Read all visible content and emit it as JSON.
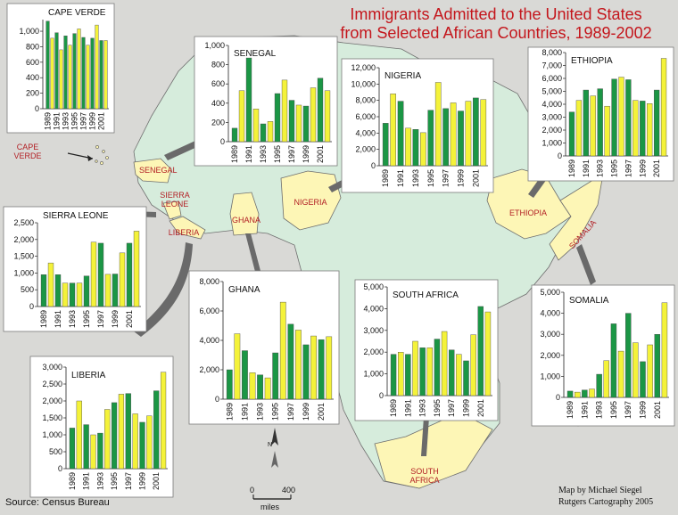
{
  "title": {
    "line1": "Immigrants Admitted to the United States",
    "line2": "from Selected African Countries, 1989-2002"
  },
  "source": "Source: Census Bureau",
  "credit": {
    "line1": "Map by Michael Siegel",
    "line2": "Rutgers Cartography 2005"
  },
  "scale": {
    "zero": "0",
    "four_hundred": "400",
    "unit": "miles",
    "north": "N"
  },
  "map_labels": {
    "cape_verde": "CAPE VERDE",
    "senegal": "SENEGAL",
    "sierra_leone": "SIERRA LEONE",
    "liberia": "LIBERIA",
    "ghana": "GHANA",
    "nigeria": "NIGERIA",
    "ethiopia": "ETHIOPIA",
    "somalia": "SOMALIA",
    "south_africa": "SOUTH AFRICA"
  },
  "colors": {
    "ocean": "#d9d9d6",
    "land": "#d6ecdc",
    "highlight": "#fdf6b6",
    "even_year_bar": "#1b9645",
    "odd_year_bar": "#f4f23a",
    "label": "#b21f24",
    "title": "#c4161c"
  },
  "chart_data": [
    {
      "id": "cape-verde",
      "type": "bar",
      "title": "CAPE VERDE",
      "categories": [
        "1989",
        "1990",
        "1991",
        "1992",
        "1993",
        "1994",
        "1995",
        "1996",
        "1997",
        "1998",
        "1999",
        "2000",
        "2001",
        "2002"
      ],
      "tick_labels": [
        "1989",
        "1991",
        "1993",
        "1995",
        "1997",
        "1999",
        "2001"
      ],
      "values": [
        1130,
        910,
        980,
        760,
        940,
        820,
        970,
        1030,
        920,
        820,
        910,
        1080,
        880,
        880
      ],
      "yticks": [
        0,
        200,
        400,
        600,
        800,
        1000
      ],
      "ytick_labels": [
        "0",
        "200",
        "400",
        "600",
        "800",
        "1,000"
      ],
      "ylim": [
        0,
        1150
      ]
    },
    {
      "id": "senegal",
      "type": "bar",
      "title": "SENEGAL",
      "categories": [
        "1989",
        "1990",
        "1991",
        "1992",
        "1993",
        "1994",
        "1995",
        "1996",
        "1997",
        "1998",
        "1999",
        "2000",
        "2001",
        "2002"
      ],
      "tick_labels": [
        "1989",
        "1991",
        "1993",
        "1995",
        "1997",
        "1999",
        "2001"
      ],
      "values": [
        140,
        530,
        870,
        340,
        185,
        210,
        500,
        640,
        430,
        380,
        370,
        560,
        660,
        530
      ],
      "yticks": [
        0,
        200,
        400,
        600,
        800,
        1000
      ],
      "ytick_labels": [
        "0",
        "200",
        "400",
        "600",
        "800",
        "1,000"
      ],
      "ylim": [
        0,
        1000
      ]
    },
    {
      "id": "nigeria",
      "type": "bar",
      "title": "NIGERIA",
      "categories": [
        "1989",
        "1990",
        "1991",
        "1992",
        "1993",
        "1994",
        "1995",
        "1996",
        "1997",
        "1998",
        "1999",
        "2000",
        "2001",
        "2002"
      ],
      "tick_labels": [
        "1989",
        "1991",
        "1993",
        "1995",
        "1997",
        "1999",
        "2001"
      ],
      "values": [
        5200,
        8800,
        7900,
        4600,
        4450,
        4050,
        6800,
        10200,
        7000,
        7700,
        6700,
        7900,
        8300,
        8100
      ],
      "yticks": [
        0,
        2000,
        4000,
        6000,
        8000,
        10000,
        12000
      ],
      "ytick_labels": [
        "0",
        "2,000",
        "4,000",
        "6,000",
        "8,000",
        "10,000",
        "12,000"
      ],
      "ylim": [
        0,
        12000
      ]
    },
    {
      "id": "ethiopia",
      "type": "bar",
      "title": "ETHIOPIA",
      "categories": [
        "1989",
        "1990",
        "1991",
        "1992",
        "1993",
        "1994",
        "1995",
        "1996",
        "1997",
        "1998",
        "1999",
        "2000",
        "2001",
        "2002"
      ],
      "tick_labels": [
        "1989",
        "1991",
        "1993",
        "1995",
        "1997",
        "1999",
        "2001"
      ],
      "values": [
        3400,
        4300,
        5100,
        4650,
        5200,
        3850,
        5950,
        6100,
        5900,
        4300,
        4250,
        4050,
        5100,
        7550
      ],
      "yticks": [
        0,
        1000,
        2000,
        3000,
        4000,
        5000,
        6000,
        7000,
        8000
      ],
      "ytick_labels": [
        "0",
        "1,000",
        "2,000",
        "3,000",
        "4,000",
        "5,000",
        "6,000",
        "7,000",
        "8,000"
      ],
      "ylim": [
        0,
        8000
      ]
    },
    {
      "id": "sierra-leone",
      "type": "bar",
      "title": "SIERRA LEONE",
      "categories": [
        "1989",
        "1990",
        "1991",
        "1992",
        "1993",
        "1994",
        "1995",
        "1996",
        "1997",
        "1998",
        "1999",
        "2000",
        "2001",
        "2002"
      ],
      "tick_labels": [
        "1989",
        "1991",
        "1993",
        "1995",
        "1997",
        "1999",
        "2001"
      ],
      "values": [
        950,
        1300,
        950,
        700,
        700,
        700,
        910,
        1920,
        1890,
        960,
        970,
        1600,
        1890,
        2250
      ],
      "yticks": [
        0,
        500,
        1000,
        1500,
        2000,
        2500
      ],
      "ytick_labels": [
        "0",
        "500",
        "1,000",
        "1,500",
        "2,000",
        "2,500"
      ],
      "ylim": [
        0,
        2500
      ]
    },
    {
      "id": "ghana",
      "type": "bar",
      "title": "GHANA",
      "categories": [
        "1989",
        "1990",
        "1991",
        "1992",
        "1993",
        "1994",
        "1995",
        "1996",
        "1997",
        "1998",
        "1999",
        "2000",
        "2001",
        "2002"
      ],
      "tick_labels": [
        "1989",
        "1991",
        "1993",
        "1995",
        "1997",
        "1999",
        "2001"
      ],
      "values": [
        2000,
        4450,
        3300,
        1800,
        1650,
        1450,
        3150,
        6600,
        5100,
        4700,
        3700,
        4300,
        4050,
        4250
      ],
      "yticks": [
        0,
        2000,
        4000,
        6000,
        8000
      ],
      "ytick_labels": [
        "0",
        "2,000",
        "4,000",
        "6,000",
        "8,000"
      ],
      "ylim": [
        0,
        8000
      ]
    },
    {
      "id": "south-africa",
      "type": "bar",
      "title": "SOUTH AFRICA",
      "categories": [
        "1989",
        "1990",
        "1991",
        "1992",
        "1993",
        "1994",
        "1995",
        "1996",
        "1997",
        "1998",
        "1999",
        "2000",
        "2001",
        "2002"
      ],
      "tick_labels": [
        "1989",
        "1991",
        "1993",
        "1995",
        "1997",
        "1999",
        "2001"
      ],
      "values": [
        1900,
        2000,
        1900,
        2500,
        2200,
        2200,
        2600,
        2950,
        2100,
        1900,
        1600,
        2800,
        4100,
        3850
      ],
      "yticks": [
        0,
        1000,
        2000,
        3000,
        4000,
        5000
      ],
      "ytick_labels": [
        "0",
        "1,000",
        "2,000",
        "3,000",
        "4,000",
        "5,000"
      ],
      "ylim": [
        0,
        5000
      ]
    },
    {
      "id": "somalia",
      "type": "bar",
      "title": "SOMALIA",
      "categories": [
        "1989",
        "1990",
        "1991",
        "1992",
        "1993",
        "1994",
        "1995",
        "1996",
        "1997",
        "1998",
        "1999",
        "2000",
        "2001",
        "2002"
      ],
      "tick_labels": [
        "1989",
        "1991",
        "1993",
        "1995",
        "1997",
        "1999",
        "2001"
      ],
      "values": [
        300,
        250,
        350,
        400,
        1100,
        1750,
        3500,
        2200,
        4000,
        2600,
        1700,
        2500,
        3000,
        4500
      ],
      "yticks": [
        0,
        1000,
        2000,
        3000,
        4000,
        5000
      ],
      "ytick_labels": [
        "0",
        "1,000",
        "2,000",
        "3,000",
        "4,000",
        "5,000"
      ],
      "ylim": [
        0,
        5000
      ]
    },
    {
      "id": "liberia",
      "type": "bar",
      "title": "LIBERIA",
      "categories": [
        "1989",
        "1990",
        "1991",
        "1992",
        "1993",
        "1994",
        "1995",
        "1996",
        "1997",
        "1998",
        "1999",
        "2000",
        "2001",
        "2002"
      ],
      "tick_labels": [
        "1989",
        "1991",
        "1993",
        "1995",
        "1997",
        "1999",
        "2001"
      ],
      "values": [
        1200,
        2000,
        1300,
        1000,
        1050,
        1750,
        1950,
        2200,
        2220,
        1620,
        1370,
        1560,
        2300,
        2850
      ],
      "yticks": [
        0,
        500,
        1000,
        1500,
        2000,
        2500,
        3000
      ],
      "ytick_labels": [
        "0",
        "500",
        "1,000",
        "1,500",
        "2,000",
        "2,500",
        "3,000"
      ],
      "ylim": [
        0,
        3000
      ]
    }
  ]
}
